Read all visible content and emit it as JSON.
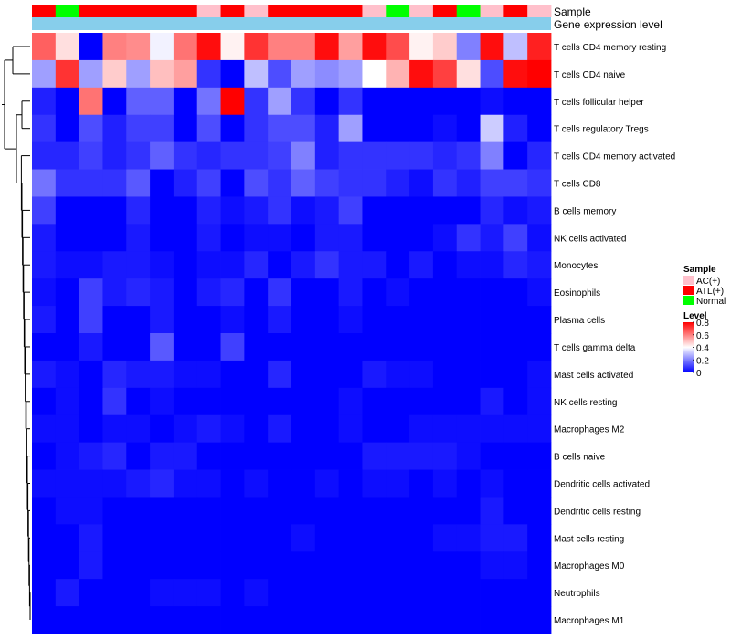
{
  "chart_data": {
    "type": "heatmap",
    "annotations": {
      "sample_track_label": "Sample",
      "expression_track_label": "Gene expression level"
    },
    "sample_groups": [
      "ATL(+)",
      "Normal",
      "ATL(+)",
      "ATL(+)",
      "ATL(+)",
      "ATL(+)",
      "ATL(+)",
      "AC(+)",
      "ATL(+)",
      "AC(+)",
      "ATL(+)",
      "ATL(+)",
      "ATL(+)",
      "ATL(+)",
      "AC(+)",
      "Normal",
      "AC(+)",
      "ATL(+)",
      "Normal",
      "AC(+)",
      "ATL(+)",
      "AC(+)"
    ],
    "cell_types": [
      "T cells CD4 memory resting",
      "T cells CD4 naive",
      "T cells follicular helper",
      "T cells regulatory  Tregs",
      "T cells CD4 memory activated",
      "T cells CD8",
      "B cells memory",
      "NK cells activated",
      "Monocytes",
      "Eosinophils",
      "Plasma cells",
      "T cells gamma delta",
      "Mast cells activated",
      "NK cells resting",
      "Macrophages M2",
      "B cells naive",
      "Dendritic cells activated",
      "Dendritic cells resting",
      "Mast cells resting",
      "Macrophages M0",
      "Neutrophils",
      "Macrophages M1"
    ],
    "values": [
      [
        0.65,
        0.45,
        0.0,
        0.6,
        0.58,
        0.38,
        0.62,
        0.78,
        0.42,
        0.72,
        0.6,
        0.6,
        0.78,
        0.55,
        0.78,
        0.68,
        0.42,
        0.48,
        0.2,
        0.78,
        0.3,
        0.75
      ],
      [
        0.25,
        0.72,
        0.25,
        0.48,
        0.25,
        0.5,
        0.55,
        0.08,
        0.0,
        0.3,
        0.12,
        0.25,
        0.22,
        0.25,
        0.4,
        0.52,
        0.78,
        0.7,
        0.45,
        0.12,
        0.78,
        0.8
      ],
      [
        0.05,
        0.0,
        0.62,
        0.0,
        0.15,
        0.15,
        0.0,
        0.18,
        0.8,
        0.08,
        0.25,
        0.08,
        0.0,
        0.08,
        0.0,
        0.0,
        0.0,
        0.0,
        0.0,
        0.02,
        0.0,
        0.0
      ],
      [
        0.08,
        0.0,
        0.12,
        0.05,
        0.1,
        0.1,
        0.0,
        0.12,
        0.0,
        0.08,
        0.12,
        0.12,
        0.05,
        0.25,
        0.0,
        0.0,
        0.0,
        0.02,
        0.0,
        0.32,
        0.05,
        0.0
      ],
      [
        0.06,
        0.06,
        0.1,
        0.05,
        0.08,
        0.15,
        0.08,
        0.06,
        0.08,
        0.08,
        0.1,
        0.2,
        0.05,
        0.08,
        0.08,
        0.08,
        0.08,
        0.06,
        0.08,
        0.2,
        0.0,
        0.06
      ],
      [
        0.18,
        0.08,
        0.08,
        0.08,
        0.14,
        0.0,
        0.05,
        0.1,
        0.0,
        0.12,
        0.08,
        0.15,
        0.1,
        0.08,
        0.08,
        0.05,
        0.02,
        0.08,
        0.05,
        0.1,
        0.1,
        0.08
      ],
      [
        0.1,
        0.0,
        0.0,
        0.0,
        0.06,
        0.0,
        0.0,
        0.05,
        0.02,
        0.04,
        0.08,
        0.02,
        0.04,
        0.1,
        0.0,
        0.0,
        0.0,
        0.0,
        0.0,
        0.06,
        0.02,
        0.04
      ],
      [
        0.04,
        0.0,
        0.0,
        0.0,
        0.04,
        0.0,
        0.0,
        0.04,
        0.0,
        0.02,
        0.02,
        0.0,
        0.04,
        0.04,
        0.0,
        0.0,
        0.0,
        0.02,
        0.08,
        0.04,
        0.1,
        0.02
      ],
      [
        0.04,
        0.02,
        0.02,
        0.04,
        0.04,
        0.02,
        0.0,
        0.02,
        0.02,
        0.06,
        0.0,
        0.04,
        0.08,
        0.04,
        0.04,
        0.0,
        0.04,
        0.0,
        0.02,
        0.02,
        0.06,
        0.04
      ],
      [
        0.02,
        0.0,
        0.1,
        0.04,
        0.06,
        0.04,
        0.0,
        0.04,
        0.06,
        0.0,
        0.08,
        0.0,
        0.0,
        0.04,
        0.0,
        0.02,
        0.0,
        0.0,
        0.0,
        0.0,
        0.0,
        0.02
      ],
      [
        0.04,
        0.0,
        0.1,
        0.0,
        0.0,
        0.04,
        0.0,
        0.0,
        0.02,
        0.0,
        0.04,
        0.0,
        0.0,
        0.02,
        0.0,
        0.0,
        0.0,
        0.0,
        0.0,
        0.0,
        0.0,
        0.0
      ],
      [
        0.0,
        0.0,
        0.04,
        0.0,
        0.0,
        0.14,
        0.0,
        0.0,
        0.1,
        0.0,
        0.0,
        0.0,
        0.0,
        0.0,
        0.0,
        0.0,
        0.0,
        0.0,
        0.0,
        0.0,
        0.0,
        0.0
      ],
      [
        0.04,
        0.02,
        0.0,
        0.06,
        0.04,
        0.04,
        0.02,
        0.02,
        0.0,
        0.0,
        0.06,
        0.0,
        0.0,
        0.0,
        0.04,
        0.02,
        0.02,
        0.0,
        0.0,
        0.0,
        0.0,
        0.02
      ],
      [
        0.0,
        0.02,
        0.0,
        0.08,
        0.0,
        0.02,
        0.0,
        0.0,
        0.0,
        0.0,
        0.0,
        0.0,
        0.0,
        0.02,
        0.0,
        0.0,
        0.0,
        0.0,
        0.0,
        0.04,
        0.0,
        0.02
      ],
      [
        0.02,
        0.02,
        0.0,
        0.02,
        0.02,
        0.0,
        0.02,
        0.04,
        0.02,
        0.0,
        0.04,
        0.0,
        0.0,
        0.02,
        0.0,
        0.0,
        0.02,
        0.02,
        0.02,
        0.02,
        0.02,
        0.02
      ],
      [
        0.0,
        0.02,
        0.04,
        0.06,
        0.0,
        0.04,
        0.04,
        0.0,
        0.0,
        0.0,
        0.0,
        0.0,
        0.0,
        0.0,
        0.04,
        0.04,
        0.04,
        0.04,
        0.02,
        0.0,
        0.0,
        0.0
      ],
      [
        0.02,
        0.02,
        0.02,
        0.02,
        0.04,
        0.06,
        0.02,
        0.02,
        0.0,
        0.02,
        0.0,
        0.0,
        0.02,
        0.0,
        0.02,
        0.02,
        0.0,
        0.02,
        0.0,
        0.02,
        0.0,
        0.0
      ],
      [
        0.0,
        0.02,
        0.02,
        0.0,
        0.0,
        0.0,
        0.0,
        0.0,
        0.0,
        0.0,
        0.0,
        0.0,
        0.0,
        0.0,
        0.0,
        0.0,
        0.0,
        0.0,
        0.0,
        0.04,
        0.0,
        0.0
      ],
      [
        0.0,
        0.0,
        0.04,
        0.0,
        0.0,
        0.0,
        0.0,
        0.0,
        0.0,
        0.0,
        0.0,
        0.02,
        0.0,
        0.0,
        0.0,
        0.0,
        0.0,
        0.02,
        0.02,
        0.04,
        0.04,
        0.0
      ],
      [
        0.0,
        0.0,
        0.04,
        0.0,
        0.0,
        0.0,
        0.0,
        0.0,
        0.0,
        0.0,
        0.0,
        0.0,
        0.0,
        0.0,
        0.0,
        0.0,
        0.0,
        0.0,
        0.0,
        0.02,
        0.02,
        0.0
      ],
      [
        0.0,
        0.04,
        0.0,
        0.0,
        0.0,
        0.02,
        0.02,
        0.02,
        0.0,
        0.02,
        0.0,
        0.0,
        0.0,
        0.0,
        0.0,
        0.0,
        0.0,
        0.0,
        0.0,
        0.0,
        0.0,
        0.0
      ],
      [
        0.0,
        0.0,
        0.0,
        0.0,
        0.0,
        0.0,
        0.0,
        0.0,
        0.0,
        0.0,
        0.0,
        0.0,
        0.0,
        0.0,
        0.0,
        0.0,
        0.0,
        0.0,
        0.0,
        0.0,
        0.0,
        0.0
      ]
    ],
    "color_scale": {
      "min": 0,
      "max": 0.8,
      "stops": [
        {
          "value": 0,
          "color": "#0000ff"
        },
        {
          "value": 0.4,
          "color": "#ffffff"
        },
        {
          "value": 0.8,
          "color": "#ff0000"
        }
      ]
    },
    "expression_track_color": "#87ceeb",
    "sample_legend": {
      "title": "Sample",
      "items": [
        {
          "label": "AC(+)",
          "color": "#ffc0cb"
        },
        {
          "label": "ATL(+)",
          "color": "#ff0000"
        },
        {
          "label": "Normal",
          "color": "#00ff00"
        }
      ]
    },
    "level_legend": {
      "title": "Level",
      "ticks": [
        "0.8",
        "0.6",
        "0.4",
        "0.2",
        "0"
      ],
      "tick_values": [
        0.8,
        0.6,
        0.4,
        0.2,
        0
      ]
    },
    "row_dendrogram": "hierarchical clustering of cell types (rows)"
  }
}
